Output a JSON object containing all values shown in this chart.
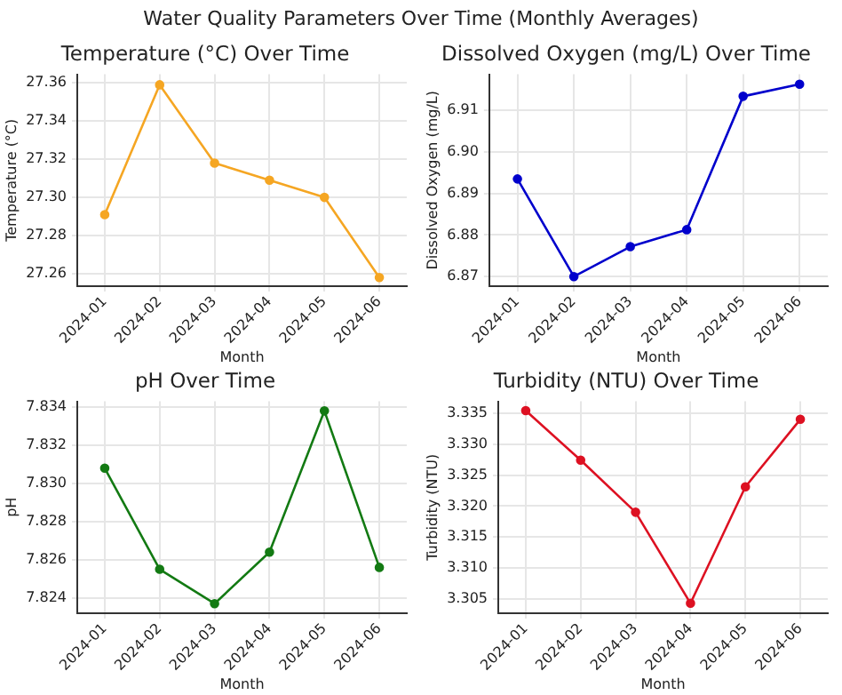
{
  "chart_data": [
    {
      "type": "other",
      "title": "Water Quality Parameters Over Time (Monthly Averages)"
    },
    {
      "type": "line",
      "title": "Temperature (°C) Over Time",
      "xlabel": "Month",
      "ylabel": "Temperature (°C)",
      "categories": [
        "2024-01",
        "2024-02",
        "2024-03",
        "2024-04",
        "2024-05",
        "2024-06"
      ],
      "series": [
        {
          "color": "#f5a623",
          "values": [
            27.291,
            27.359,
            27.318,
            27.309,
            27.3,
            27.258
          ]
        }
      ],
      "ylim": [
        27.2535,
        27.3645
      ],
      "yticks": [
        {
          "value": 27.26,
          "label": "27.26"
        },
        {
          "value": 27.28,
          "label": "27.28"
        },
        {
          "value": 27.3,
          "label": "27.30"
        },
        {
          "value": 27.32,
          "label": "27.32"
        },
        {
          "value": 27.34,
          "label": "27.34"
        },
        {
          "value": 27.36,
          "label": "27.36"
        }
      ],
      "grid": true,
      "marker": "circle",
      "line_style": "solid"
    },
    {
      "type": "line",
      "title": "Dissolved Oxygen (mg/L) Over Time",
      "xlabel": "Month",
      "ylabel": "Dissolved Oxygen (mg/L)",
      "categories": [
        "2024-01",
        "2024-02",
        "2024-03",
        "2024-04",
        "2024-05",
        "2024-06"
      ],
      "series": [
        {
          "color": "#0000cc",
          "values": [
            6.8935,
            6.87,
            6.8772,
            6.8813,
            6.9134,
            6.9163
          ]
        }
      ],
      "ylim": [
        6.8677,
        6.9187
      ],
      "yticks": [
        {
          "value": 6.87,
          "label": "6.87"
        },
        {
          "value": 6.88,
          "label": "6.88"
        },
        {
          "value": 6.89,
          "label": "6.89"
        },
        {
          "value": 6.9,
          "label": "6.90"
        },
        {
          "value": 6.91,
          "label": "6.91"
        }
      ],
      "grid": true,
      "marker": "circle",
      "line_style": "solid"
    },
    {
      "type": "line",
      "title": "pH Over Time",
      "xlabel": "Month",
      "ylabel": "pH",
      "categories": [
        "2024-01",
        "2024-02",
        "2024-03",
        "2024-04",
        "2024-05",
        "2024-06"
      ],
      "series": [
        {
          "color": "#137a13",
          "values": [
            7.8308,
            7.8255,
            7.8237,
            7.8264,
            7.8338,
            7.8256
          ]
        }
      ],
      "ylim": [
        7.8232,
        7.8343
      ],
      "yticks": [
        {
          "value": 7.824,
          "label": "7.824"
        },
        {
          "value": 7.826,
          "label": "7.826"
        },
        {
          "value": 7.828,
          "label": "7.828"
        },
        {
          "value": 7.83,
          "label": "7.830"
        },
        {
          "value": 7.832,
          "label": "7.832"
        },
        {
          "value": 7.834,
          "label": "7.834"
        }
      ],
      "grid": true,
      "marker": "circle",
      "line_style": "solid"
    },
    {
      "type": "line",
      "title": "Turbidity (NTU) Over Time",
      "xlabel": "Month",
      "ylabel": "Turbidity (NTU)",
      "categories": [
        "2024-01",
        "2024-02",
        "2024-03",
        "2024-04",
        "2024-05",
        "2024-06"
      ],
      "series": [
        {
          "color": "#dd1122",
          "values": [
            3.3354,
            3.3274,
            3.319,
            3.3043,
            3.3231,
            3.334
          ]
        }
      ],
      "ylim": [
        3.3027,
        3.3369
      ],
      "yticks": [
        {
          "value": 3.305,
          "label": "3.305"
        },
        {
          "value": 3.31,
          "label": "3.310"
        },
        {
          "value": 3.315,
          "label": "3.315"
        },
        {
          "value": 3.32,
          "label": "3.320"
        },
        {
          "value": 3.325,
          "label": "3.325"
        },
        {
          "value": 3.33,
          "label": "3.330"
        },
        {
          "value": 3.335,
          "label": "3.335"
        }
      ],
      "grid": true,
      "marker": "circle",
      "line_style": "solid"
    }
  ]
}
